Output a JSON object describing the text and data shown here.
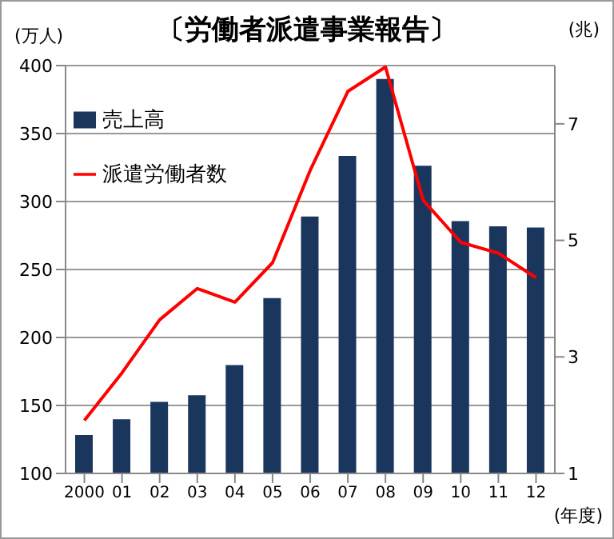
{
  "chart_data": {
    "type": "bar",
    "title": "〔労働者派遣事業報告〕",
    "xlabel": "(年度)",
    "ylabel": "(万人)",
    "y2label": "(兆)",
    "categories": [
      "2000",
      "01",
      "02",
      "03",
      "04",
      "05",
      "06",
      "07",
      "08",
      "09",
      "10",
      "11",
      "12"
    ],
    "series": [
      {
        "name": "売上高",
        "axis": "y2",
        "color": "#1b365d",
        "values": [
          1.66,
          1.93,
          2.23,
          2.34,
          2.86,
          4.01,
          5.41,
          6.45,
          7.77,
          6.28,
          5.33,
          5.24,
          5.22
        ]
      },
      {
        "name": "派遣労働者数",
        "type": "line",
        "color": "#ff0000",
        "values": [
          139,
          174,
          213,
          236,
          226,
          255,
          323,
          381,
          399,
          301,
          270,
          262,
          244
        ]
      }
    ],
    "ylim": [
      100,
      400
    ],
    "yticks": [
      100,
      150,
      200,
      250,
      300,
      350,
      400
    ],
    "y2lim": [
      1,
      8
    ],
    "y2ticks": [
      1,
      3,
      5,
      7
    ],
    "grid": "y",
    "legend": "top left",
    "marker": "none"
  }
}
